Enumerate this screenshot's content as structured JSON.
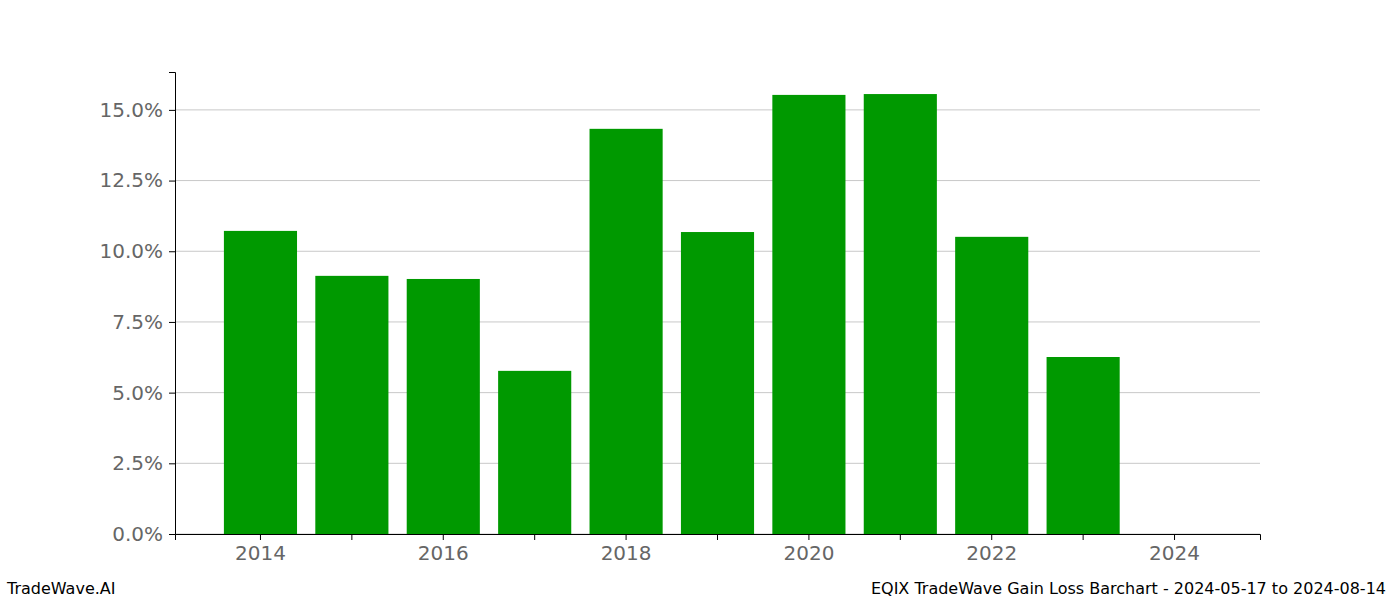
{
  "chart_data": {
    "type": "bar",
    "title": "EQIX TradeWave Gain Loss Barchart - 2024-05-17 to 2024-08-14",
    "annotations": [
      "TradeWave.AI"
    ],
    "categories": [
      2014,
      null,
      2016,
      null,
      2018,
      null,
      2020,
      null,
      2022,
      null,
      2024
    ],
    "values": [
      10.72,
      9.13,
      9.02,
      5.77,
      14.33,
      10.68,
      15.53,
      15.56,
      10.51,
      6.26,
      0
    ],
    "color": "#009900",
    "ylim": [
      0,
      16.34
    ],
    "yticks": [
      {
        "value": 0,
        "label": "0.0%"
      },
      {
        "value": 2.5,
        "label": "2.5%"
      },
      {
        "value": 5,
        "label": "5.0%"
      },
      {
        "value": 7.5,
        "label": "7.5%"
      },
      {
        "value": 10,
        "label": "10.0%"
      },
      {
        "value": 12.5,
        "label": "12.5%"
      },
      {
        "value": 15,
        "label": "15.0%"
      }
    ],
    "grid": true
  }
}
